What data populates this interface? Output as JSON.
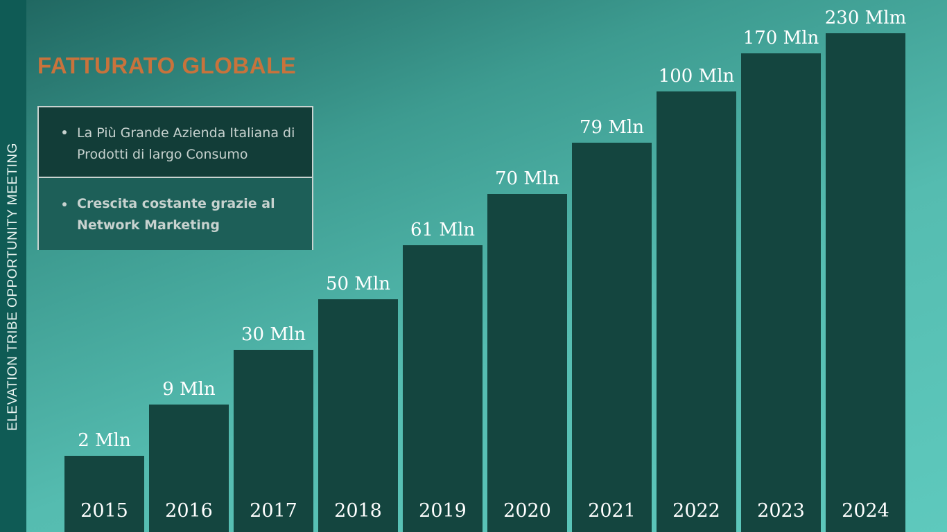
{
  "sidebar": {
    "text": "ELEVATION TRIBE OPPORTUNITY MEETING"
  },
  "title": "FATTURATO GLOBALE",
  "info": {
    "items": [
      {
        "text": "La Più Grande Azienda Italiana di Prodotti di largo Consumo"
      },
      {
        "text": "Crescita costante grazie al Network Marketing"
      }
    ]
  },
  "colors": {
    "title": "#c8733c",
    "bar": "#14453f",
    "background_start": "#1f6660",
    "background_end": "#5ec9bd",
    "side_strip": "#0f5b55"
  },
  "chart_data": {
    "type": "bar",
    "title": "FATTURATO GLOBALE",
    "categories": [
      "2015",
      "2016",
      "2017",
      "2018",
      "2019",
      "2020",
      "2021",
      "2022",
      "2023",
      "2024"
    ],
    "values": [
      2,
      9,
      30,
      50,
      61,
      70,
      79,
      100,
      170,
      230
    ],
    "data_labels": [
      "2 Mln",
      "9 Mln",
      "30 Mln",
      "50 Mln",
      "61 Mln",
      "70 Mln",
      "79 Mln",
      "100 Mln",
      "170 Mln",
      "230 Mlm"
    ],
    "xlabel": "",
    "ylabel": "",
    "grid": false,
    "legend": "none"
  }
}
